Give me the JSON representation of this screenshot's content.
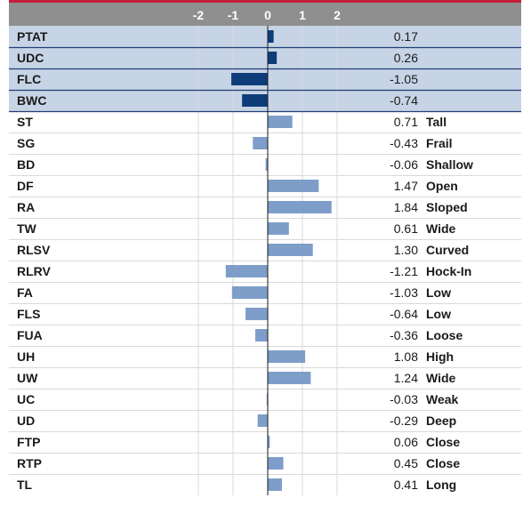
{
  "colors": {
    "top_rule": "#c41e3a",
    "header_bg": "#8f8f8f",
    "highlight_row_bg": "#c7d4e6",
    "highlight_bar": "#0d3c78",
    "normal_bar": "#7e9ec9",
    "highlight_rule": "#1d3f73",
    "row_rule": "#d9d9d9",
    "grid": "#d9d9d9",
    "zero_line": "#1a1a1a"
  },
  "chart_data": {
    "type": "bar",
    "orientation": "horizontal",
    "xlim": [
      -2.5,
      2.5
    ],
    "xticks": [
      -2,
      -1,
      0,
      1,
      2
    ],
    "xtick_labels": [
      "-2",
      "-1",
      "0",
      "1",
      "2"
    ],
    "grid": true,
    "rows": [
      {
        "trait": "PTAT",
        "value": 0.17,
        "value_label": "0.17",
        "descriptor": "",
        "highlight": true
      },
      {
        "trait": "UDC",
        "value": 0.26,
        "value_label": "0.26",
        "descriptor": "",
        "highlight": true
      },
      {
        "trait": "FLC",
        "value": -1.05,
        "value_label": "-1.05",
        "descriptor": "",
        "highlight": true
      },
      {
        "trait": "BWC",
        "value": -0.74,
        "value_label": "-0.74",
        "descriptor": "",
        "highlight": true
      },
      {
        "trait": "ST",
        "value": 0.71,
        "value_label": "0.71",
        "descriptor": "Tall",
        "highlight": false
      },
      {
        "trait": "SG",
        "value": -0.43,
        "value_label": "-0.43",
        "descriptor": "Frail",
        "highlight": false
      },
      {
        "trait": "BD",
        "value": -0.06,
        "value_label": "-0.06",
        "descriptor": "Shallow",
        "highlight": false
      },
      {
        "trait": "DF",
        "value": 1.47,
        "value_label": "1.47",
        "descriptor": "Open",
        "highlight": false
      },
      {
        "trait": "RA",
        "value": 1.84,
        "value_label": "1.84",
        "descriptor": "Sloped",
        "highlight": false
      },
      {
        "trait": "TW",
        "value": 0.61,
        "value_label": "0.61",
        "descriptor": "Wide",
        "highlight": false
      },
      {
        "trait": "RLSV",
        "value": 1.3,
        "value_label": "1.30",
        "descriptor": "Curved",
        "highlight": false
      },
      {
        "trait": "RLRV",
        "value": -1.21,
        "value_label": "-1.21",
        "descriptor": "Hock-In",
        "highlight": false
      },
      {
        "trait": "FA",
        "value": -1.03,
        "value_label": "-1.03",
        "descriptor": "Low",
        "highlight": false
      },
      {
        "trait": "FLS",
        "value": -0.64,
        "value_label": "-0.64",
        "descriptor": "Low",
        "highlight": false
      },
      {
        "trait": "FUA",
        "value": -0.36,
        "value_label": "-0.36",
        "descriptor": "Loose",
        "highlight": false
      },
      {
        "trait": "UH",
        "value": 1.08,
        "value_label": "1.08",
        "descriptor": "High",
        "highlight": false
      },
      {
        "trait": "UW",
        "value": 1.24,
        "value_label": "1.24",
        "descriptor": "Wide",
        "highlight": false
      },
      {
        "trait": "UC",
        "value": -0.03,
        "value_label": "-0.03",
        "descriptor": "Weak",
        "highlight": false
      },
      {
        "trait": "UD",
        "value": -0.29,
        "value_label": "-0.29",
        "descriptor": "Deep",
        "highlight": false
      },
      {
        "trait": "FTP",
        "value": 0.06,
        "value_label": "0.06",
        "descriptor": "Close",
        "highlight": false
      },
      {
        "trait": "RTP",
        "value": 0.45,
        "value_label": "0.45",
        "descriptor": "Close",
        "highlight": false
      },
      {
        "trait": "TL",
        "value": 0.41,
        "value_label": "0.41",
        "descriptor": "Long",
        "highlight": false
      }
    ]
  }
}
